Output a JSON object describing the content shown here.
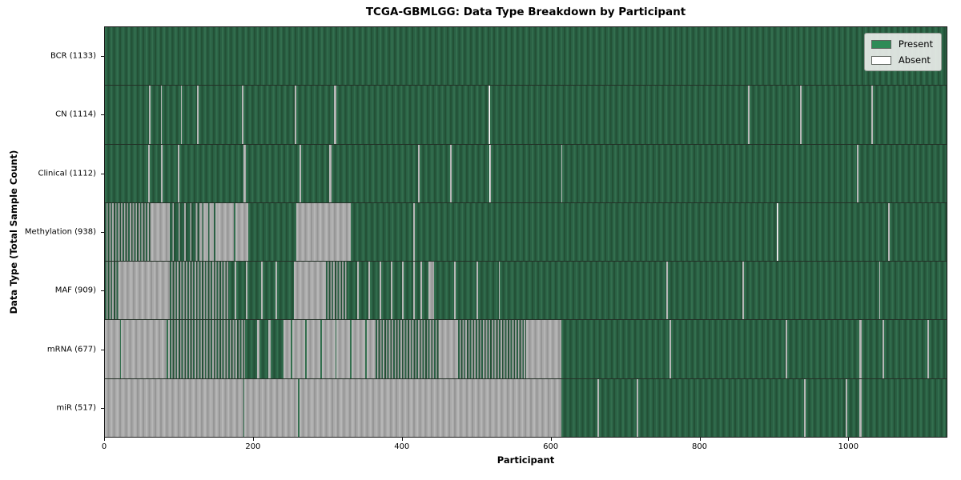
{
  "title": "TCGA-GBMLGG: Data Type Breakdown by Participant",
  "axes": {
    "x_label": "Participant",
    "y_label": "Data Type (Total Sample Count)",
    "x_ticks": [
      0,
      200,
      400,
      600,
      800,
      1000
    ],
    "x_max": 1133
  },
  "legend": {
    "items": [
      {
        "label": "Present",
        "state": "present",
        "color": "#2e8b57"
      },
      {
        "label": "Absent",
        "state": "absent",
        "color": "#ffffff"
      }
    ]
  },
  "colors": {
    "present_face": "#2e8b57",
    "absent_face": "#ffffff",
    "bar_edge": "#808080"
  },
  "chart_data": {
    "type": "heatmap",
    "title": "TCGA-GBMLGG: Data Type Breakdown by Participant",
    "xlabel": "Participant",
    "ylabel": "Data Type (Total Sample Count)",
    "x_range": [
      0,
      1133
    ],
    "x_tick_labels": [
      "0",
      "200",
      "400",
      "600",
      "800",
      "1000"
    ],
    "legend_entries": [
      "Present",
      "Absent"
    ],
    "legend_position": "upper right",
    "grid": false,
    "states_note": "segments are [start_participant, end_participant, state]; mixed = alternating present/absent too dense to resolve per participant",
    "rows": [
      {
        "label": "BCR (1133)",
        "data_type": "BCR",
        "present_count": 1133,
        "segments": [
          [
            0,
            1133,
            "present"
          ]
        ]
      },
      {
        "label": "CN (1114)",
        "data_type": "CN",
        "present_count": 1114,
        "segments": [
          [
            0,
            59,
            "present"
          ],
          [
            59,
            61,
            "absent"
          ],
          [
            61,
            75,
            "present"
          ],
          [
            75,
            77,
            "absent"
          ],
          [
            77,
            102,
            "present"
          ],
          [
            102,
            104,
            "absent"
          ],
          [
            104,
            124,
            "present"
          ],
          [
            124,
            126,
            "absent"
          ],
          [
            126,
            184,
            "present"
          ],
          [
            184,
            187,
            "absent"
          ],
          [
            187,
            256,
            "present"
          ],
          [
            256,
            258,
            "absent"
          ],
          [
            258,
            308,
            "present"
          ],
          [
            308,
            312,
            "absent"
          ],
          [
            312,
            516,
            "present"
          ],
          [
            516,
            518,
            "absent"
          ],
          [
            518,
            866,
            "present"
          ],
          [
            866,
            868,
            "absent"
          ],
          [
            868,
            936,
            "present"
          ],
          [
            936,
            938,
            "absent"
          ],
          [
            938,
            1032,
            "present"
          ],
          [
            1032,
            1034,
            "absent"
          ],
          [
            1034,
            1133,
            "present"
          ]
        ]
      },
      {
        "label": "Clinical (1112)",
        "data_type": "Clinical",
        "present_count": 1112,
        "segments": [
          [
            0,
            58,
            "present"
          ],
          [
            58,
            60,
            "absent"
          ],
          [
            60,
            76,
            "present"
          ],
          [
            76,
            78,
            "absent"
          ],
          [
            78,
            98,
            "present"
          ],
          [
            98,
            100,
            "absent"
          ],
          [
            100,
            187,
            "present"
          ],
          [
            187,
            190,
            "absent"
          ],
          [
            190,
            262,
            "present"
          ],
          [
            262,
            264,
            "absent"
          ],
          [
            264,
            302,
            "present"
          ],
          [
            302,
            305,
            "absent"
          ],
          [
            305,
            422,
            "present"
          ],
          [
            422,
            424,
            "absent"
          ],
          [
            424,
            465,
            "present"
          ],
          [
            465,
            467,
            "absent"
          ],
          [
            467,
            518,
            "present"
          ],
          [
            518,
            520,
            "absent"
          ],
          [
            520,
            614,
            "present"
          ],
          [
            614,
            616,
            "absent"
          ],
          [
            616,
            1012,
            "present"
          ],
          [
            1012,
            1014,
            "absent"
          ],
          [
            1014,
            1133,
            "present"
          ]
        ]
      },
      {
        "label": "Methylation (938)",
        "data_type": "Methylation",
        "present_count": 938,
        "segments": [
          [
            0,
            62,
            "mixed"
          ],
          [
            62,
            87,
            "absent"
          ],
          [
            87,
            127,
            "mixed_green"
          ],
          [
            127,
            153,
            "mixed_gray"
          ],
          [
            153,
            174,
            "absent"
          ],
          [
            174,
            176,
            "present"
          ],
          [
            176,
            193,
            "absent"
          ],
          [
            193,
            258,
            "present"
          ],
          [
            258,
            331,
            "absent"
          ],
          [
            331,
            415,
            "present"
          ],
          [
            415,
            417,
            "absent"
          ],
          [
            417,
            905,
            "present"
          ],
          [
            905,
            907,
            "absent"
          ],
          [
            907,
            1054,
            "present"
          ],
          [
            1054,
            1056,
            "absent"
          ],
          [
            1056,
            1133,
            "present"
          ]
        ]
      },
      {
        "label": "MAF (909)",
        "data_type": "MAF",
        "present_count": 909,
        "segments": [
          [
            0,
            18,
            "mixed"
          ],
          [
            18,
            87,
            "absent"
          ],
          [
            87,
            167,
            "mixed"
          ],
          [
            167,
            175,
            "present"
          ],
          [
            175,
            177,
            "absent"
          ],
          [
            177,
            190,
            "present"
          ],
          [
            190,
            192,
            "absent"
          ],
          [
            192,
            210,
            "present"
          ],
          [
            210,
            212,
            "absent"
          ],
          [
            212,
            230,
            "present"
          ],
          [
            230,
            232,
            "absent"
          ],
          [
            232,
            254,
            "present"
          ],
          [
            254,
            298,
            "absent"
          ],
          [
            298,
            327,
            "mixed"
          ],
          [
            327,
            340,
            "present"
          ],
          [
            340,
            342,
            "absent"
          ],
          [
            342,
            355,
            "present"
          ],
          [
            355,
            357,
            "absent"
          ],
          [
            357,
            370,
            "present"
          ],
          [
            370,
            372,
            "absent"
          ],
          [
            372,
            385,
            "present"
          ],
          [
            385,
            387,
            "absent"
          ],
          [
            387,
            400,
            "present"
          ],
          [
            400,
            402,
            "absent"
          ],
          [
            402,
            415,
            "present"
          ],
          [
            415,
            417,
            "absent"
          ],
          [
            417,
            425,
            "present"
          ],
          [
            425,
            427,
            "absent"
          ],
          [
            427,
            436,
            "present"
          ],
          [
            436,
            443,
            "absent"
          ],
          [
            443,
            470,
            "present"
          ],
          [
            470,
            472,
            "absent"
          ],
          [
            472,
            500,
            "present"
          ],
          [
            500,
            502,
            "absent"
          ],
          [
            502,
            530,
            "present"
          ],
          [
            530,
            532,
            "absent"
          ],
          [
            532,
            756,
            "present"
          ],
          [
            756,
            758,
            "absent"
          ],
          [
            758,
            858,
            "present"
          ],
          [
            858,
            860,
            "absent"
          ],
          [
            860,
            1042,
            "present"
          ],
          [
            1042,
            1044,
            "absent"
          ],
          [
            1044,
            1133,
            "present"
          ]
        ]
      },
      {
        "label": "mRNA (677)",
        "data_type": "mRNA",
        "present_count": 677,
        "segments": [
          [
            0,
            20,
            "absent"
          ],
          [
            20,
            22,
            "present"
          ],
          [
            22,
            83,
            "absent"
          ],
          [
            83,
            85,
            "present"
          ],
          [
            85,
            87,
            "absent"
          ],
          [
            87,
            189,
            "mixed"
          ],
          [
            189,
            205,
            "present"
          ],
          [
            205,
            208,
            "absent"
          ],
          [
            208,
            220,
            "present"
          ],
          [
            220,
            223,
            "absent"
          ],
          [
            223,
            240,
            "present"
          ],
          [
            240,
            250,
            "absent"
          ],
          [
            250,
            252,
            "present"
          ],
          [
            252,
            270,
            "absent"
          ],
          [
            270,
            272,
            "present"
          ],
          [
            272,
            290,
            "absent"
          ],
          [
            290,
            292,
            "present"
          ],
          [
            292,
            310,
            "absent"
          ],
          [
            310,
            312,
            "present"
          ],
          [
            312,
            330,
            "absent"
          ],
          [
            330,
            332,
            "present"
          ],
          [
            332,
            350,
            "absent"
          ],
          [
            350,
            352,
            "present"
          ],
          [
            352,
            364,
            "absent"
          ],
          [
            364,
            450,
            "mixed"
          ],
          [
            450,
            475,
            "absent"
          ],
          [
            475,
            567,
            "mixed"
          ],
          [
            567,
            614,
            "absent"
          ],
          [
            614,
            760,
            "present"
          ],
          [
            760,
            762,
            "absent"
          ],
          [
            762,
            916,
            "present"
          ],
          [
            916,
            918,
            "absent"
          ],
          [
            918,
            1016,
            "present"
          ],
          [
            1016,
            1019,
            "absent"
          ],
          [
            1019,
            1047,
            "present"
          ],
          [
            1047,
            1049,
            "absent"
          ],
          [
            1049,
            1107,
            "present"
          ],
          [
            1107,
            1109,
            "absent"
          ],
          [
            1109,
            1133,
            "present"
          ]
        ]
      },
      {
        "label": "miR (517)",
        "data_type": "miR",
        "present_count": 517,
        "segments": [
          [
            0,
            186,
            "absent"
          ],
          [
            186,
            188,
            "present"
          ],
          [
            188,
            260,
            "absent"
          ],
          [
            260,
            262,
            "present"
          ],
          [
            262,
            614,
            "absent"
          ],
          [
            614,
            663,
            "present"
          ],
          [
            663,
            665,
            "absent"
          ],
          [
            665,
            716,
            "present"
          ],
          [
            716,
            718,
            "absent"
          ],
          [
            718,
            941,
            "present"
          ],
          [
            941,
            943,
            "absent"
          ],
          [
            943,
            997,
            "present"
          ],
          [
            997,
            999,
            "absent"
          ],
          [
            999,
            1016,
            "present"
          ],
          [
            1016,
            1019,
            "absent"
          ],
          [
            1019,
            1133,
            "present"
          ]
        ]
      }
    ]
  }
}
